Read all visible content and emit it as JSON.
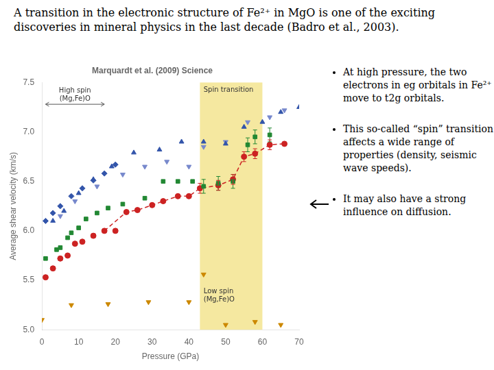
{
  "title": "A transition in the electronic structure of Fe²⁺ in MgO is one of the exciting discoveries in mineral physics in the last decade (Badro et al., 2003).",
  "bullets": [
    "At high pressure, the two electrons in eg orbitals in Fe²⁺ move to t2g orbitals.",
    "This so-called “spin” transition affects a wide range of properties (density, seismic wave speeds).",
    "It may also have a strong influence on diffusion."
  ],
  "chart_data": {
    "type": "scatter",
    "title": "Marquardt et al. (2009) Science",
    "xlabel": "Pressure (GPa)",
    "ylabel": "Average shear velocity (km/s)",
    "xlim": [
      0,
      70
    ],
    "ylim": [
      5.0,
      7.5
    ],
    "xticks": [
      0,
      10,
      20,
      30,
      40,
      50,
      60,
      70
    ],
    "yticks": [
      {
        "value": 5.0,
        "label": "5.0"
      },
      5.5,
      {
        "value": 6.0,
        "label": "6.0"
      },
      6.5,
      {
        "value": 7.0,
        "label": "7.0"
      },
      7.5
    ],
    "grid": false,
    "shaded_region": {
      "x": [
        43,
        60
      ],
      "color": "#f5e8a0"
    },
    "series": [
      {
        "type": "scatter",
        "marker": "diamond",
        "color": "#3355aa",
        "x": [
          1,
          3,
          5,
          8,
          11,
          14,
          17,
          20
        ],
        "values": [
          6.1,
          6.18,
          6.25,
          6.35,
          6.43,
          6.51,
          6.58,
          6.67
        ]
      },
      {
        "type": "scatter",
        "marker": "triangle_up",
        "color": "#3355aa",
        "x": [
          3,
          6,
          10,
          14,
          19,
          25,
          32,
          38,
          44,
          50,
          55,
          60,
          65,
          70
        ],
        "values": [
          6.1,
          6.2,
          6.38,
          6.52,
          6.65,
          6.79,
          6.82,
          6.9,
          6.9,
          6.88,
          7.05,
          7.1,
          7.2,
          7.25
        ]
      },
      {
        "type": "scatter",
        "marker": "triangle_down",
        "color": "#7788cc",
        "x": [
          5,
          9,
          15,
          22,
          28,
          34,
          40,
          44,
          50,
          56,
          62,
          66
        ],
        "values": [
          6.15,
          6.3,
          6.45,
          6.57,
          6.65,
          6.7,
          6.65,
          6.85,
          6.9,
          7.1,
          7.15,
          7.22
        ]
      },
      {
        "type": "scatter",
        "marker": "square",
        "color": "#228833",
        "x": [
          1,
          4,
          5,
          7,
          8,
          10,
          12,
          15,
          18,
          22,
          28,
          33,
          37,
          41,
          44,
          48,
          52,
          56,
          58,
          62
        ],
        "values": [
          5.72,
          5.81,
          5.83,
          5.93,
          5.98,
          6.03,
          6.12,
          6.18,
          6.23,
          6.27,
          6.33,
          6.5,
          6.5,
          6.5,
          6.45,
          6.48,
          6.5,
          6.87,
          6.95,
          6.97
        ],
        "errors": [
          null,
          null,
          null,
          null,
          null,
          null,
          null,
          null,
          null,
          null,
          null,
          null,
          null,
          null,
          0.07,
          0.07,
          0.07,
          0.07,
          0.07,
          0.07
        ]
      },
      {
        "type": "scatter",
        "marker": "circle",
        "color": "#cc2222",
        "x": [
          1,
          3,
          5,
          7,
          9,
          11,
          14,
          17,
          20,
          23,
          26,
          30,
          33,
          37,
          40,
          43,
          48,
          52,
          55,
          58,
          62,
          66
        ],
        "values": [
          5.53,
          5.62,
          5.72,
          5.75,
          5.87,
          5.89,
          5.95,
          6.0,
          6.0,
          6.19,
          6.21,
          6.26,
          6.3,
          6.35,
          6.35,
          6.43,
          6.46,
          6.52,
          6.75,
          6.78,
          6.87,
          6.88
        ],
        "errors": [
          null,
          null,
          null,
          null,
          null,
          null,
          null,
          null,
          null,
          null,
          null,
          null,
          null,
          null,
          null,
          0.05,
          0.05,
          0.05,
          0.05,
          0.05,
          0.05,
          null
        ]
      },
      {
        "type": "scatter",
        "marker": "triangle_down",
        "color": "#cc8800",
        "x": [
          0,
          8,
          18,
          29,
          40,
          44,
          50,
          58,
          65
        ],
        "values": [
          5.1,
          5.25,
          5.26,
          5.28,
          5.28,
          5.56,
          5.05,
          5.08,
          5.05
        ]
      },
      {
        "type": "line",
        "line_style": "dashed",
        "color": "#cc2222",
        "x": [
          17,
          23,
          26,
          30,
          33,
          37,
          40,
          43,
          48,
          52,
          55,
          58,
          62,
          66
        ],
        "values": [
          6.0,
          6.19,
          6.21,
          6.26,
          6.3,
          6.35,
          6.35,
          6.43,
          6.46,
          6.52,
          6.75,
          6.78,
          6.87,
          6.88
        ]
      }
    ],
    "annotations": [
      {
        "text": "Spin transition",
        "x": 44,
        "y": 7.46
      },
      {
        "text": "Low spin\n(Mg,Fe)O",
        "x": 44,
        "y": 5.42
      }
    ],
    "arrows": [
      {
        "text": "High spin\n(Mg,Fe)O",
        "x": [
          1,
          17
        ],
        "y": 7.28
      }
    ]
  }
}
